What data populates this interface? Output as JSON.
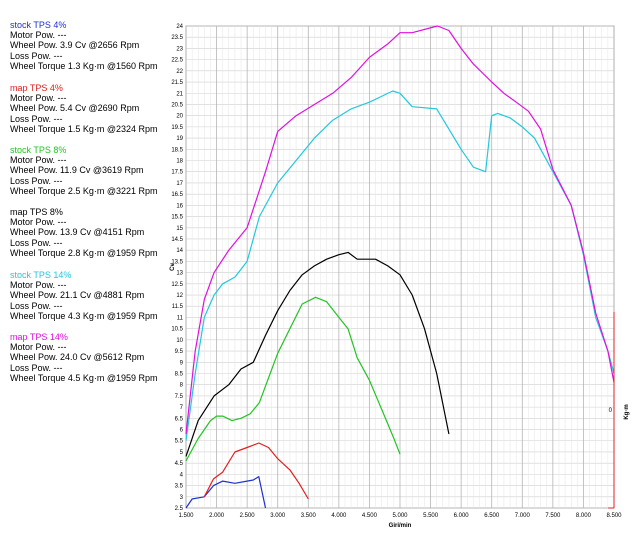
{
  "legend": [
    {
      "title": "stock TPS 4%",
      "color": "#1f2fd4",
      "motor": "Motor Pow.   ---",
      "wheel_pow": "Wheel Pow.   3.9 Cv   @2656 Rpm",
      "loss": "Loss Pow.  ---",
      "torque": "Wheel Torque   1.3 Kg·m   @1560 Rpm"
    },
    {
      "title": "map TPS 4%",
      "color": "#e02020",
      "motor": "Motor Pow.   ---",
      "wheel_pow": "Wheel Pow.   5.4 Cv   @2690 Rpm",
      "loss": "Loss Pow.  ---",
      "torque": "Wheel Torque   1.5 Kg·m   @2324 Rpm"
    },
    {
      "title": "stock TPS 8%",
      "color": "#22c422",
      "motor": "Motor Pow.   ---",
      "wheel_pow": "Wheel Pow.   11.9 Cv   @3619 Rpm",
      "loss": "Loss Pow.  ---",
      "torque": "Wheel Torque   2.5 Kg·m   @3221 Rpm"
    },
    {
      "title": "map TPS 8%",
      "color": "#000000",
      "motor": "Motor Pow.   ---",
      "wheel_pow": "Wheel Pow.   13.9 Cv   @4151 Rpm",
      "loss": "Loss Pow.  ---",
      "torque": "Wheel Torque   2.8 Kg·m   @1959 Rpm"
    },
    {
      "title": "stock TPS 14%",
      "color": "#22c8dc",
      "motor": "Motor Pow.   ---",
      "wheel_pow": "Wheel Pow.   21.1 Cv   @4881 Rpm",
      "loss": "Loss Pow.  ---",
      "torque": "Wheel Torque   4.3 Kg·m   @1959 Rpm"
    },
    {
      "title": "map TPS 14%",
      "color": "#e010e0",
      "motor": "Motor Pow.   ---",
      "wheel_pow": "Wheel Pow.   24.0 Cv   @5612 Rpm",
      "loss": "Loss Pow.  ---",
      "torque": "Wheel Torque   4.5 Kg·m   @1959 Rpm"
    }
  ],
  "chart_data": {
    "type": "line",
    "xlabel": "Giri/min",
    "ylabel": "Cv",
    "y2label": "Kg·m",
    "xlim": [
      1500,
      8500
    ],
    "ylim": [
      2.5,
      24
    ],
    "x_ticks": [
      1500,
      2000,
      2500,
      3000,
      3500,
      4000,
      4500,
      5000,
      5500,
      6000,
      6500,
      7000,
      7500,
      8000,
      8500
    ],
    "x_tick_labels": [
      "1.500",
      "2.000",
      "2.500",
      "3.000",
      "3.500",
      "4.000",
      "4.500",
      "5.000",
      "5.500",
      "6.000",
      "6.500",
      "7.000",
      "7.500",
      "8.000",
      "8.500"
    ],
    "y_ticks": [
      2.5,
      3,
      3.5,
      4,
      4.5,
      5,
      5.5,
      6,
      6.5,
      7,
      7.5,
      8,
      8.5,
      9,
      9.5,
      10,
      10.5,
      11,
      11.5,
      12,
      12.5,
      13,
      13.5,
      14,
      14.5,
      15,
      15.5,
      16,
      16.5,
      17,
      17.5,
      18,
      18.5,
      19,
      19.5,
      20,
      20.5,
      21,
      21.5,
      22,
      22.5,
      23,
      23.5,
      24
    ],
    "y_tick_labels": [
      "2.5",
      "3",
      "3.5",
      "4",
      "4.5",
      "5",
      "5.5",
      "6",
      "6.5",
      "7",
      "7.5",
      "8",
      "8.5",
      "9",
      "9.5",
      "10",
      "10.5",
      "11",
      "11.5",
      "12",
      "12.5",
      "13",
      "13.5",
      "14",
      "14.5",
      "15",
      "15.5",
      "16",
      "16.5",
      "17",
      "17.5",
      "18",
      "18.5",
      "19",
      "19.5",
      "20",
      "20.5",
      "21",
      "21.5",
      "22",
      "22.5",
      "23",
      "23.5",
      "24"
    ],
    "y2_tick_label": "0",
    "grid": true,
    "series": [
      {
        "name": "stock TPS 4%",
        "color": "#1f2fd4",
        "x": [
          1500,
          1600,
          1800,
          1950,
          2100,
          2300,
          2500,
          2600,
          2690,
          2800
        ],
        "y": [
          2.5,
          2.9,
          3.0,
          3.5,
          3.7,
          3.6,
          3.7,
          3.75,
          3.9,
          2.5
        ]
      },
      {
        "name": "map TPS 4%",
        "color": "#e02020",
        "x": [
          1800,
          1950,
          2100,
          2300,
          2500,
          2690,
          2850,
          3000,
          3200,
          3350,
          3500
        ],
        "y": [
          3.0,
          3.8,
          4.1,
          5.0,
          5.2,
          5.4,
          5.2,
          4.7,
          4.2,
          3.6,
          2.9
        ]
      },
      {
        "name": "stock TPS 8%",
        "color": "#22c422",
        "x": [
          1500,
          1700,
          1900,
          2000,
          2100,
          2250,
          2400,
          2550,
          2700,
          2850,
          3000,
          3200,
          3400,
          3620,
          3800,
          4000,
          4150,
          4300,
          4500,
          4700,
          4900,
          5000
        ],
        "y": [
          4.6,
          5.6,
          6.4,
          6.6,
          6.6,
          6.4,
          6.5,
          6.7,
          7.2,
          8.3,
          9.4,
          10.5,
          11.6,
          11.9,
          11.7,
          11.0,
          10.5,
          9.2,
          8.2,
          6.9,
          5.6,
          4.9
        ]
      },
      {
        "name": "map TPS 8%",
        "color": "#000000",
        "x": [
          1500,
          1700,
          1960,
          2200,
          2400,
          2600,
          2800,
          3000,
          3200,
          3400,
          3600,
          3800,
          4000,
          4151,
          4300,
          4600,
          4800,
          5000,
          5200,
          5400,
          5600,
          5800
        ],
        "y": [
          4.8,
          6.4,
          7.5,
          8.0,
          8.7,
          9.0,
          10.2,
          11.3,
          12.2,
          12.9,
          13.3,
          13.6,
          13.8,
          13.9,
          13.6,
          13.6,
          13.3,
          12.9,
          12.0,
          10.5,
          8.5,
          5.8
        ]
      },
      {
        "name": "stock TPS 14%",
        "color": "#22c8dc",
        "x": [
          1500,
          1650,
          1800,
          1960,
          2100,
          2300,
          2500,
          2700,
          3000,
          3300,
          3600,
          3900,
          4200,
          4500,
          4881,
          5000,
          5200,
          5600,
          6000,
          6200,
          6400,
          6500,
          6600,
          6800,
          7000,
          7200,
          7500,
          7800,
          8000,
          8200,
          8400,
          8500
        ],
        "y": [
          5.5,
          8.5,
          11.0,
          12.0,
          12.5,
          12.8,
          13.5,
          15.5,
          17.0,
          18.0,
          19.0,
          19.8,
          20.3,
          20.6,
          21.1,
          21.0,
          20.4,
          20.3,
          18.5,
          17.7,
          17.5,
          20.0,
          20.1,
          19.9,
          19.5,
          19.0,
          17.5,
          16.0,
          13.8,
          11.0,
          9.5,
          8.5
        ]
      },
      {
        "name": "map TPS 14%",
        "color": "#e010e0",
        "x": [
          1500,
          1650,
          1800,
          1960,
          2200,
          2500,
          2800,
          3000,
          3300,
          3600,
          3900,
          4200,
          4500,
          4800,
          5000,
          5200,
          5612,
          5800,
          6000,
          6200,
          6500,
          6700,
          6900,
          7100,
          7300,
          7500,
          7800,
          8000,
          8200,
          8400,
          8500
        ],
        "y": [
          5.8,
          9.5,
          11.8,
          13.0,
          14.0,
          15.0,
          17.5,
          19.3,
          20.0,
          20.5,
          21.0,
          21.7,
          22.6,
          23.2,
          23.7,
          23.7,
          24.0,
          23.8,
          23.0,
          22.3,
          21.5,
          21.0,
          20.6,
          20.2,
          19.4,
          17.6,
          16.0,
          13.9,
          11.2,
          9.5,
          8.1
        ]
      }
    ]
  }
}
